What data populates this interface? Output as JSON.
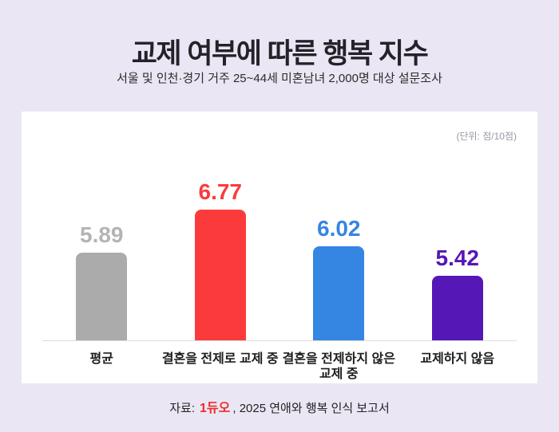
{
  "page": {
    "background": "#ebe6f3",
    "card_background": "#ffffff"
  },
  "header": {
    "title": "교제 여부에 따른 행복 지수",
    "subtitle": "서울 및 인천·경기 거주 25~44세 미혼남녀 2,000명 대상 설문조사"
  },
  "chart_card": {
    "unit_label": "(단위: 점/10점)"
  },
  "chart_data": {
    "type": "bar",
    "title": "교제 여부에 따른 행복 지수",
    "categories": [
      "평균",
      "결혼을 전제로 교제 중",
      "결혼을 전제하지 않은 교제 중",
      "교제하지 않음"
    ],
    "values": [
      5.89,
      6.77,
      6.02,
      5.42
    ],
    "value_labels": [
      "5.89",
      "6.77",
      "6.02",
      "5.42"
    ],
    "bar_colors": [
      "#ababab",
      "#fb3b3b",
      "#3585e2",
      "#5517b5"
    ],
    "label_colors": [
      "#b4b4b4",
      "#fb3b3b",
      "#3585e2",
      "#5517b5"
    ],
    "unit": "점/10점",
    "xlabel": "",
    "ylabel": "",
    "ylim": [
      4.1,
      7.2
    ],
    "grid": false,
    "legend": false,
    "baseline_color": "#dcdcdc"
  },
  "footer": {
    "source_prefix": "자료:",
    "source_logo": "1듀오",
    "source_logo_color": "#ee2c2c",
    "source_suffix": ", 2025 연애와 행복 인식 보고서"
  }
}
